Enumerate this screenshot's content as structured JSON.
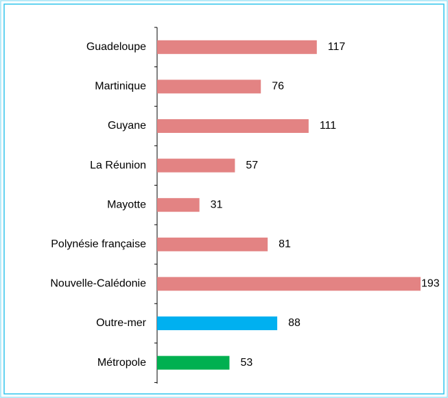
{
  "chart_data": {
    "type": "hbar",
    "categories": [
      "Guadeloupe",
      "Martinique",
      "Guyane",
      "La Réunion",
      "Mayotte",
      "Polynésie française",
      "Nouvelle-Calédonie",
      "Outre-mer",
      "Métropole"
    ],
    "values": [
      117,
      76,
      111,
      57,
      31,
      81,
      193,
      88,
      53
    ],
    "colors": [
      "#e38383",
      "#e38383",
      "#e38383",
      "#e38383",
      "#e38383",
      "#e38383",
      "#e38383",
      "#00b0f0",
      "#00b050"
    ]
  }
}
